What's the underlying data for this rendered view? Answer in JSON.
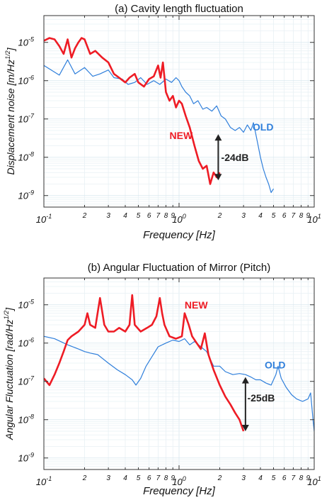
{
  "colors": {
    "new": "#ee1c25",
    "old": "#2f7fdb",
    "arrow": "#222222",
    "grid": "#d7e6ee",
    "minor_grid": "#e8f0f4"
  },
  "chart_data": [
    {
      "type": "line",
      "title": "(a) Cavity length fluctuation",
      "xlabel": "Frequency [Hz]",
      "ylabel_main": "Displacement noise [m/Hz",
      "ylabel_sup": "1/2",
      "ylabel_close": "]",
      "x_scale": "log",
      "y_scale": "log",
      "xlim": [
        0.1,
        10
      ],
      "ylim": [
        5e-10,
        5e-05
      ],
      "grid": true,
      "x_ticks": [
        {
          "v": 0.1,
          "b": "10",
          "e": "-1"
        },
        {
          "v": 0.2,
          "t": "2"
        },
        {
          "v": 0.3,
          "t": "3"
        },
        {
          "v": 0.4,
          "t": "4"
        },
        {
          "v": 0.5,
          "t": "5"
        },
        {
          "v": 0.6,
          "t": "6"
        },
        {
          "v": 0.7,
          "t": "7"
        },
        {
          "v": 0.8,
          "t": "8"
        },
        {
          "v": 0.9,
          "t": "9"
        },
        {
          "v": 1,
          "b": "10",
          "e": "0"
        },
        {
          "v": 2,
          "t": "2"
        },
        {
          "v": 3,
          "t": "3"
        },
        {
          "v": 4,
          "t": "4"
        },
        {
          "v": 5,
          "t": "5"
        },
        {
          "v": 6,
          "t": "6"
        },
        {
          "v": 7,
          "t": "7"
        },
        {
          "v": 8,
          "t": "8"
        },
        {
          "v": 9,
          "t": "9"
        },
        {
          "v": 10,
          "b": "10",
          "e": "1"
        }
      ],
      "y_ticks": [
        {
          "v": 1e-09,
          "b": "10",
          "e": "-9"
        },
        {
          "v": 1e-08,
          "b": "10",
          "e": "-8"
        },
        {
          "v": 1e-07,
          "b": "10",
          "e": "-7"
        },
        {
          "v": 1e-06,
          "b": "10",
          "e": "-6"
        },
        {
          "v": 1e-05,
          "b": "10",
          "e": "-5"
        }
      ],
      "series": [
        {
          "name": "OLD",
          "color": "old",
          "width": 1.2,
          "points": [
            [
              0.1,
              2.5e-06
            ],
            [
              0.13,
              1.4e-06
            ],
            [
              0.15,
              3.5e-06
            ],
            [
              0.17,
              1.5e-06
            ],
            [
              0.2,
              2.2e-06
            ],
            [
              0.23,
              1.3e-06
            ],
            [
              0.26,
              1.5e-06
            ],
            [
              0.3,
              1.9e-06
            ],
            [
              0.33,
              1.2e-06
            ],
            [
              0.38,
              1.1e-06
            ],
            [
              0.42,
              8e-07
            ],
            [
              0.47,
              9e-07
            ],
            [
              0.52,
              1.2e-06
            ],
            [
              0.58,
              8e-07
            ],
            [
              0.65,
              1e-06
            ],
            [
              0.72,
              8e-07
            ],
            [
              0.8,
              1.1e-06
            ],
            [
              0.88,
              9e-07
            ],
            [
              0.95,
              1.2e-06
            ],
            [
              1.0,
              1e-06
            ],
            [
              1.05,
              7e-07
            ],
            [
              1.12,
              5e-07
            ],
            [
              1.2,
              4e-07
            ],
            [
              1.28,
              2.5e-07
            ],
            [
              1.38,
              3e-07
            ],
            [
              1.5,
              1.8e-07
            ],
            [
              1.6,
              2e-07
            ],
            [
              1.75,
              1.6e-07
            ],
            [
              1.9,
              2.2e-07
            ],
            [
              2.05,
              1.2e-07
            ],
            [
              2.2,
              1e-07
            ],
            [
              2.4,
              6e-08
            ],
            [
              2.6,
              5e-08
            ],
            [
              2.8,
              6e-08
            ],
            [
              3.0,
              4.5e-08
            ],
            [
              3.2,
              7e-08
            ],
            [
              3.4,
              5e-08
            ],
            [
              3.55,
              8e-08
            ],
            [
              3.7,
              4e-08
            ],
            [
              3.85,
              2e-08
            ],
            [
              4.0,
              1e-08
            ],
            [
              4.2,
              5e-09
            ],
            [
              4.4,
              3e-09
            ],
            [
              4.6,
              2e-09
            ],
            [
              4.8,
              1.2e-09
            ],
            [
              5.0,
              1.5e-09
            ]
          ]
        },
        {
          "name": "NEW",
          "color": "new",
          "width": 2.6,
          "points": [
            [
              0.1,
              1.1e-05
            ],
            [
              0.11,
              1.3e-05
            ],
            [
              0.12,
              1.2e-05
            ],
            [
              0.13,
              8e-06
            ],
            [
              0.14,
              5e-06
            ],
            [
              0.15,
              1.2e-05
            ],
            [
              0.16,
              4e-06
            ],
            [
              0.17,
              7e-06
            ],
            [
              0.18,
              1e-05
            ],
            [
              0.19,
              1.3e-05
            ],
            [
              0.2,
              1.2e-05
            ],
            [
              0.22,
              5e-06
            ],
            [
              0.24,
              6e-06
            ],
            [
              0.27,
              4e-06
            ],
            [
              0.3,
              3e-06
            ],
            [
              0.33,
              1.5e-06
            ],
            [
              0.36,
              1.2e-06
            ],
            [
              0.4,
              9e-07
            ],
            [
              0.43,
              1.2e-06
            ],
            [
              0.47,
              1.5e-06
            ],
            [
              0.5,
              9e-07
            ],
            [
              0.55,
              7e-07
            ],
            [
              0.6,
              1.1e-06
            ],
            [
              0.65,
              1.3e-06
            ],
            [
              0.7,
              2.5e-06
            ],
            [
              0.73,
              1.2e-06
            ],
            [
              0.76,
              3e-06
            ],
            [
              0.8,
              5e-07
            ],
            [
              0.85,
              3e-07
            ],
            [
              0.9,
              4e-07
            ],
            [
              0.95,
              2e-07
            ],
            [
              1.0,
              3e-07
            ],
            [
              1.05,
              2.5e-07
            ],
            [
              1.12,
              1.2e-07
            ],
            [
              1.2,
              6e-08
            ],
            [
              1.3,
              2e-08
            ],
            [
              1.4,
              8e-09
            ],
            [
              1.5,
              5e-09
            ],
            [
              1.6,
              6e-09
            ],
            [
              1.7,
              2e-09
            ],
            [
              1.8,
              4e-09
            ],
            [
              1.9,
              3e-09
            ],
            [
              2.0,
              4e-09
            ]
          ]
        }
      ],
      "annotations": [
        {
          "text": "NEW",
          "x": 0.85,
          "y": 3e-08,
          "color": "new"
        },
        {
          "text": "OLD",
          "x": 3.5,
          "y": 5e-08,
          "color": "old"
        },
        {
          "text": "-24dB",
          "x": 2.05,
          "y": 8e-09,
          "color": "arrow"
        }
      ],
      "arrow": {
        "x": 1.95,
        "y_top": 4e-08,
        "y_bottom": 2.5e-09
      }
    },
    {
      "type": "line",
      "title": "(b) Angular Fluctuation of Mirror (Pitch)",
      "xlabel": "Frequency [Hz]",
      "ylabel_main": "Angular Fluctuation [rad/Hz",
      "ylabel_sup": "1/2",
      "ylabel_close": "]",
      "x_scale": "log",
      "y_scale": "log",
      "xlim": [
        0.1,
        10
      ],
      "ylim": [
        5e-10,
        5e-05
      ],
      "grid": true,
      "x_ticks": [
        {
          "v": 0.1,
          "b": "10",
          "e": "-1"
        },
        {
          "v": 0.2,
          "t": "2"
        },
        {
          "v": 0.3,
          "t": "3"
        },
        {
          "v": 0.4,
          "t": "4"
        },
        {
          "v": 0.5,
          "t": "5"
        },
        {
          "v": 0.6,
          "t": "6"
        },
        {
          "v": 0.7,
          "t": "7"
        },
        {
          "v": 0.8,
          "t": "8"
        },
        {
          "v": 0.9,
          "t": "9"
        },
        {
          "v": 1,
          "b": "10",
          "e": "0"
        },
        {
          "v": 2,
          "t": "2"
        },
        {
          "v": 3,
          "t": "3"
        },
        {
          "v": 4,
          "t": "4"
        },
        {
          "v": 5,
          "t": "5"
        },
        {
          "v": 6,
          "t": "6"
        },
        {
          "v": 7,
          "t": "7"
        },
        {
          "v": 8,
          "t": "8"
        },
        {
          "v": 9,
          "t": "9"
        },
        {
          "v": 10,
          "b": "10",
          "e": "1"
        }
      ],
      "y_ticks": [
        {
          "v": 1e-09,
          "b": "10",
          "e": "-9"
        },
        {
          "v": 1e-08,
          "b": "10",
          "e": "-8"
        },
        {
          "v": 1e-07,
          "b": "10",
          "e": "-7"
        },
        {
          "v": 1e-06,
          "b": "10",
          "e": "-6"
        },
        {
          "v": 1e-05,
          "b": "10",
          "e": "-5"
        }
      ],
      "series": [
        {
          "name": "OLD",
          "color": "old",
          "width": 1.2,
          "points": [
            [
              0.1,
              1.5e-06
            ],
            [
              0.12,
              1.3e-06
            ],
            [
              0.15,
              9e-07
            ],
            [
              0.18,
              7e-07
            ],
            [
              0.2,
              6e-07
            ],
            [
              0.22,
              5.5e-07
            ],
            [
              0.25,
              5e-07
            ],
            [
              0.3,
              3e-07
            ],
            [
              0.35,
              2e-07
            ],
            [
              0.4,
              1.5e-07
            ],
            [
              0.45,
              1.1e-07
            ],
            [
              0.48,
              8e-08
            ],
            [
              0.52,
              1.2e-07
            ],
            [
              0.57,
              2.5e-07
            ],
            [
              0.62,
              4e-07
            ],
            [
              0.7,
              8e-07
            ],
            [
              0.8,
              1e-06
            ],
            [
              0.9,
              1.2e-06
            ],
            [
              1.0,
              1.1e-06
            ],
            [
              1.1,
              1.3e-06
            ],
            [
              1.2,
              9e-07
            ],
            [
              1.3,
              1.1e-06
            ],
            [
              1.45,
              8e-07
            ],
            [
              1.6,
              6e-07
            ],
            [
              1.8,
              2.5e-07
            ],
            [
              2.0,
              2.5e-07
            ],
            [
              2.2,
              1.8e-07
            ],
            [
              2.5,
              1.5e-07
            ],
            [
              2.8,
              1.6e-07
            ],
            [
              3.1,
              1.5e-07
            ],
            [
              3.4,
              1.3e-07
            ],
            [
              3.7,
              1.1e-07
            ],
            [
              4.0,
              1.1e-07
            ],
            [
              4.4,
              9e-08
            ],
            [
              4.8,
              8e-08
            ],
            [
              5.2,
              1.5e-07
            ],
            [
              5.4,
              2.5e-07
            ],
            [
              5.7,
              1.2e-07
            ],
            [
              6.2,
              7e-08
            ],
            [
              6.8,
              4.5e-08
            ],
            [
              7.4,
              3.5e-08
            ],
            [
              8.2,
              3e-08
            ],
            [
              9.0,
              3.5e-08
            ],
            [
              9.4,
              5e-08
            ],
            [
              9.8,
              1e-08
            ],
            [
              10,
              5e-09
            ]
          ]
        },
        {
          "name": "NEW",
          "color": "new",
          "width": 2.6,
          "points": [
            [
              0.1,
              1.2e-07
            ],
            [
              0.11,
              8e-08
            ],
            [
              0.12,
              1.5e-07
            ],
            [
              0.13,
              3e-07
            ],
            [
              0.14,
              6e-07
            ],
            [
              0.15,
              1.2e-06
            ],
            [
              0.16,
              1.5e-06
            ],
            [
              0.18,
              2e-06
            ],
            [
              0.2,
              3e-06
            ],
            [
              0.21,
              6e-06
            ],
            [
              0.22,
              3e-06
            ],
            [
              0.24,
              2.5e-06
            ],
            [
              0.26,
              1.5e-05
            ],
            [
              0.28,
              3e-06
            ],
            [
              0.3,
              2e-06
            ],
            [
              0.33,
              2e-06
            ],
            [
              0.36,
              2.5e-06
            ],
            [
              0.4,
              2e-06
            ],
            [
              0.43,
              3e-06
            ],
            [
              0.45,
              1.8e-05
            ],
            [
              0.47,
              3e-06
            ],
            [
              0.52,
              2e-06
            ],
            [
              0.58,
              2.5e-06
            ],
            [
              0.63,
              3e-06
            ],
            [
              0.68,
              5e-06
            ],
            [
              0.72,
              1.5e-05
            ],
            [
              0.75,
              6e-06
            ],
            [
              0.78,
              3e-06
            ],
            [
              0.85,
              1.5e-06
            ],
            [
              0.95,
              1.3e-06
            ],
            [
              1.05,
              1.5e-06
            ],
            [
              1.1,
              6e-06
            ],
            [
              1.18,
              3e-06
            ],
            [
              1.25,
              1.5e-06
            ],
            [
              1.35,
              1e-06
            ],
            [
              1.45,
              7e-07
            ],
            [
              1.55,
              1.8e-06
            ],
            [
              1.65,
              5e-07
            ],
            [
              1.8,
              2e-07
            ],
            [
              2.0,
              8e-08
            ],
            [
              2.2,
              4e-08
            ],
            [
              2.4,
              2.5e-08
            ],
            [
              2.6,
              1.5e-08
            ],
            [
              2.8,
              1e-08
            ],
            [
              3.0,
              5e-09
            ]
          ]
        }
      ],
      "annotations": [
        {
          "text": "NEW",
          "x": 1.1,
          "y": 8e-06,
          "color": "new"
        },
        {
          "text": "OLD",
          "x": 4.3,
          "y": 2.2e-07,
          "color": "old"
        },
        {
          "text": "-25dB",
          "x": 3.2,
          "y": 3e-08,
          "color": "arrow"
        }
      ],
      "arrow": {
        "x": 3.1,
        "y_top": 1.3e-07,
        "y_bottom": 5e-09
      }
    }
  ]
}
